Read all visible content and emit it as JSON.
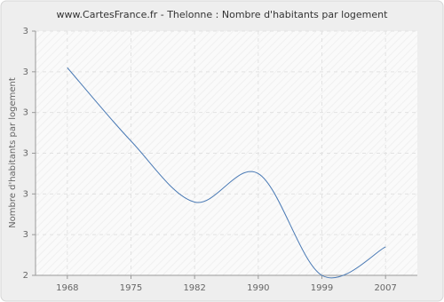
{
  "chart_data": {
    "type": "line",
    "title": "www.CartesFrance.fr - Thelonne : Nombre d'habitants par logement",
    "y_label": "Nombre d'habitants par logement",
    "categories": [
      "1968",
      "1975",
      "1982",
      "1990",
      "1999",
      "2007"
    ],
    "values": [
      2.91,
      2.73,
      2.58,
      2.65,
      2.4,
      2.47
    ],
    "color": "#4a7ab5",
    "ylim": [
      2.4,
      3.0
    ],
    "yticks": [
      {
        "value": 2.4,
        "label": "2"
      },
      {
        "value": 2.5,
        "label": "3"
      },
      {
        "value": 2.6,
        "label": "3"
      },
      {
        "value": 2.7,
        "label": "3"
      },
      {
        "value": 2.8,
        "label": "3"
      },
      {
        "value": 2.9,
        "label": "3"
      },
      {
        "value": 3.0,
        "label": "3"
      }
    ],
    "grid": true
  }
}
